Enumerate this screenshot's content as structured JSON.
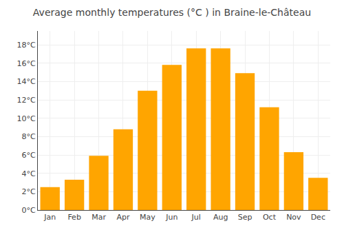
{
  "chart_data": {
    "type": "bar",
    "title": "Average monthly temperatures (°C ) in Braine-le-Château",
    "categories": [
      "Jan",
      "Feb",
      "Mar",
      "Apr",
      "May",
      "Jun",
      "Jul",
      "Aug",
      "Sep",
      "Oct",
      "Nov",
      "Dec"
    ],
    "values": [
      2.5,
      3.3,
      5.9,
      8.8,
      13.0,
      15.8,
      17.6,
      17.6,
      14.9,
      11.2,
      6.3,
      3.5
    ],
    "color": "#FFA500",
    "ylim": [
      0,
      19.5
    ],
    "yticks": [
      {
        "value": 0,
        "label": "0°C"
      },
      {
        "value": 2,
        "label": "2°C"
      },
      {
        "value": 4,
        "label": "4°C"
      },
      {
        "value": 6,
        "label": "6°C"
      },
      {
        "value": 8,
        "label": "8°C"
      },
      {
        "value": 10,
        "label": "10°C"
      },
      {
        "value": 12,
        "label": "12°C"
      },
      {
        "value": 14,
        "label": "14°C"
      },
      {
        "value": 16,
        "label": "16°C"
      },
      {
        "value": 18,
        "label": "18°C"
      }
    ],
    "grid": true
  }
}
